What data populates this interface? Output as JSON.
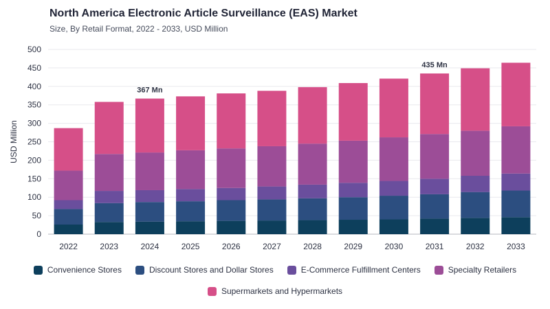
{
  "title": "North America Electronic Article Surveillance (EAS) Market",
  "subtitle": "Size, By Retail Format, 2022 - 2033, USD Million",
  "chart_data": {
    "type": "bar",
    "stacked": true,
    "categories": [
      "2022",
      "2023",
      "2024",
      "2025",
      "2026",
      "2027",
      "2028",
      "2029",
      "2030",
      "2031",
      "2032",
      "2033"
    ],
    "ylabel": "USD Million",
    "xlabel": "",
    "ylim": [
      0,
      500
    ],
    "yticks": [
      0,
      50,
      100,
      150,
      200,
      250,
      300,
      350,
      400,
      450,
      500
    ],
    "grid": true,
    "legend_position": "bottom",
    "series": [
      {
        "name": "Convenience Stores",
        "color": "#0d3f5c",
        "values": [
          26,
          33,
          34,
          35,
          36,
          37,
          38,
          39,
          40,
          42,
          44,
          46
        ]
      },
      {
        "name": "Discount Stores and Dollar Stores",
        "color": "#2c4e80",
        "values": [
          42,
          51,
          53,
          54,
          56,
          57,
          59,
          61,
          64,
          66,
          70,
          72
        ]
      },
      {
        "name": "E-Commerce Fulfillment Centers",
        "color": "#6a4e9d",
        "values": [
          24,
          33,
          32,
          33,
          33,
          35,
          37,
          39,
          40,
          42,
          44,
          46
        ]
      },
      {
        "name": "Specialty Retailers",
        "color": "#9c4d97",
        "values": [
          80,
          100,
          102,
          105,
          107,
          109,
          111,
          114,
          118,
          121,
          122,
          128
        ]
      },
      {
        "name": "Supermarkets and Hypermarkets",
        "color": "#d64f88",
        "values": [
          115,
          141,
          146,
          146,
          149,
          150,
          153,
          156,
          159,
          164,
          169,
          172
        ]
      }
    ],
    "annotations": [
      {
        "category": "2024",
        "text": "367 Mn"
      },
      {
        "category": "2031",
        "text": "435 Mn"
      }
    ]
  }
}
